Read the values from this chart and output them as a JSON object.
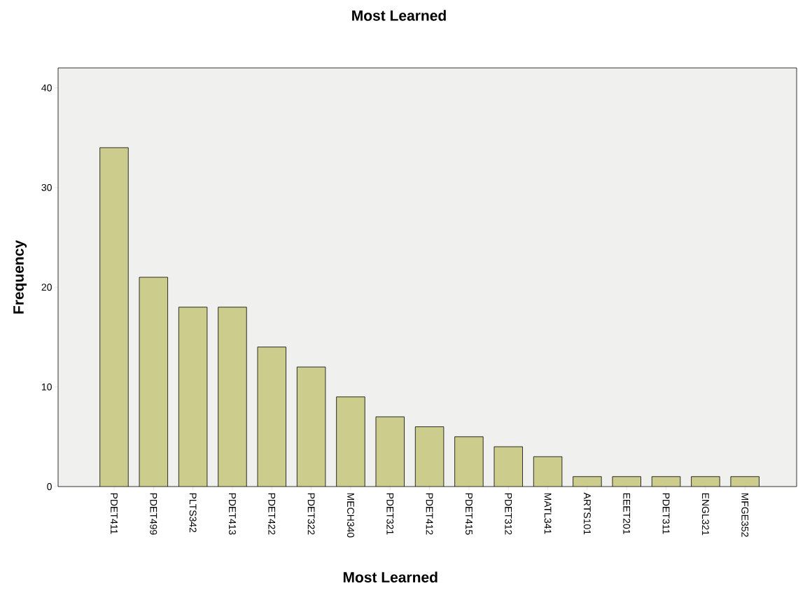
{
  "chart_data": {
    "type": "bar",
    "title": "Most Learned",
    "xlabel": "Most Learned",
    "ylabel": "Frequency",
    "categories": [
      "PDET411",
      "PDET499",
      "PLTS342",
      "PDET413",
      "PDET422",
      "PDET322",
      "MECH340",
      "PDET321",
      "PDET412",
      "PDET415",
      "PDET312",
      "MATL341",
      "ARTS101",
      "EEET201",
      "PDET311",
      "ENGL321",
      "MFGE352"
    ],
    "values": [
      34,
      21,
      18,
      18,
      14,
      12,
      9,
      7,
      6,
      5,
      4,
      3,
      1,
      1,
      1,
      1,
      1
    ],
    "color": "#cccc8c",
    "ylim": [
      0,
      42
    ],
    "yticks": [
      0,
      10,
      20,
      30,
      40
    ],
    "grid": false
  }
}
